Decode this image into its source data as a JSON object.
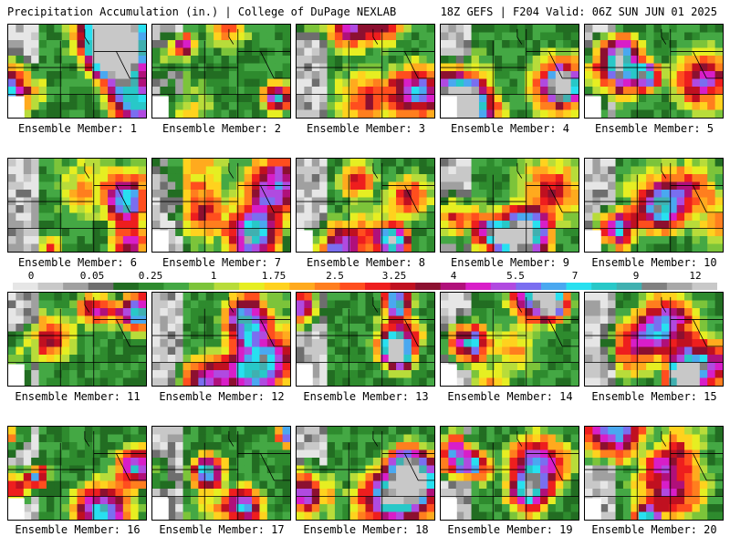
{
  "header": {
    "title": "Precipitation Accumulation (in.) | College of DuPage NEXLAB",
    "run_info": "18Z GEFS | F204 Valid: 06Z SUN JUN 01 2025"
  },
  "members": [
    "Ensemble Member: 1",
    "Ensemble Member: 2",
    "Ensemble Member: 3",
    "Ensemble Member: 4",
    "Ensemble Member: 5",
    "Ensemble Member: 6",
    "Ensemble Member: 7",
    "Ensemble Member: 8",
    "Ensemble Member: 9",
    "Ensemble Member: 10",
    "Ensemble Member: 11",
    "Ensemble Member: 12",
    "Ensemble Member: 13",
    "Ensemble Member: 14",
    "Ensemble Member: 15",
    "Ensemble Member: 16",
    "Ensemble Member: 17",
    "Ensemble Member: 18",
    "Ensemble Member: 19",
    "Ensemble Member: 20"
  ],
  "colorbar": {
    "labels": [
      "0",
      "0.05",
      "0.25",
      "1",
      "1.75",
      "2.5",
      "3.25",
      "4",
      "5.5",
      "7",
      "9",
      "12"
    ],
    "colors": [
      "#e6e6e6",
      "#c8c8c8",
      "#a0a0a0",
      "#6e6e6e",
      "#226d22",
      "#2e8b2e",
      "#44a844",
      "#7cc43a",
      "#b8dc3a",
      "#e6ee22",
      "#ffd21e",
      "#ffaa1e",
      "#ff7e1e",
      "#ff4e1e",
      "#ee1e1e",
      "#c01020",
      "#8c1030",
      "#b0107a",
      "#d81ec8",
      "#b04ae0",
      "#7a6ef0",
      "#4aa8f0",
      "#28e0f0",
      "#28c8c8",
      "#40b0b0",
      "#808080",
      "#a8a8a8",
      "#c8c8c8"
    ]
  }
}
